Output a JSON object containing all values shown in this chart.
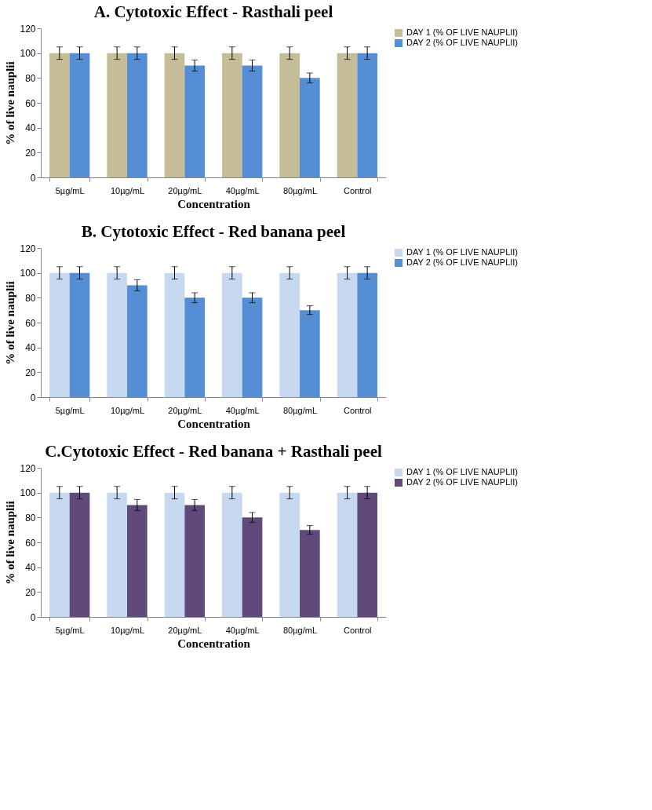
{
  "chart_data": [
    {
      "type": "bar",
      "title": "A. Cytotoxic Effect -  Rasthali peel",
      "xlabel": "Concentration",
      "ylabel": "% of live nauplii",
      "categories": [
        "5µg/mL",
        "10µg/mL",
        "20µg/mL",
        "40µg/mL",
        "80µg/mL",
        "Control"
      ],
      "ylim": [
        0,
        120
      ],
      "yticks": [
        0,
        20,
        40,
        60,
        80,
        100,
        120
      ],
      "grid": false,
      "legend": "right",
      "series": [
        {
          "name": "DAY 1 (% OF LIVE NAUPLII)",
          "color": "#c4bd97",
          "values": [
            100,
            100,
            100,
            100,
            100,
            100
          ],
          "errors": [
            5,
            5,
            5,
            5,
            5,
            5
          ]
        },
        {
          "name": "DAY 2 (% OF LIVE NAUPLII)",
          "color": "#558ed5",
          "values": [
            100,
            100,
            90,
            90,
            80,
            100
          ],
          "errors": [
            5,
            5,
            4.5,
            4.5,
            4,
            5
          ]
        }
      ]
    },
    {
      "type": "bar",
      "title": "B. Cytotoxic Effect -  Red banana peel",
      "xlabel": "Concentration",
      "ylabel": "% of live nauplii",
      "categories": [
        "5µg/mL",
        "10µg/mL",
        "20µg/mL",
        "40µg/mL",
        "80µg/mL",
        "Control"
      ],
      "ylim": [
        0,
        120
      ],
      "yticks": [
        0,
        20,
        40,
        60,
        80,
        100,
        120
      ],
      "grid": false,
      "legend": "right",
      "series": [
        {
          "name": "DAY 1 (% OF LIVE NAUPLII)",
          "color": "#c6d9f1",
          "values": [
            100,
            100,
            100,
            100,
            100,
            100
          ],
          "errors": [
            5,
            5,
            5,
            5,
            5,
            5
          ]
        },
        {
          "name": "DAY 2 (% OF LIVE NAUPLII)",
          "color": "#558ed5",
          "values": [
            100,
            90,
            80,
            80,
            70,
            100
          ],
          "errors": [
            5,
            4.5,
            4,
            4,
            3.5,
            5
          ]
        }
      ]
    },
    {
      "type": "bar",
      "title": "C.Cytotoxic Effect -  Red banana + Rasthali peel",
      "xlabel": "Concentration",
      "ylabel": "% of live nauplii",
      "categories": [
        "5µg/mL",
        "10µg/mL",
        "20µg/mL",
        "40µg/mL",
        "80µg/mL",
        "Control"
      ],
      "ylim": [
        0,
        120
      ],
      "yticks": [
        0,
        20,
        40,
        60,
        80,
        100,
        120
      ],
      "grid": false,
      "legend": "right",
      "series": [
        {
          "name": "DAY 1 (% OF LIVE NAUPLII)",
          "color": "#c6d9f1",
          "values": [
            100,
            100,
            100,
            100,
            100,
            100
          ],
          "errors": [
            5,
            5,
            5,
            5,
            5,
            5
          ]
        },
        {
          "name": "DAY 2 (% OF LIVE NAUPLII)",
          "color": "#604a7b",
          "values": [
            100,
            90,
            90,
            80,
            70,
            100
          ],
          "errors": [
            5,
            4.5,
            4.5,
            4,
            3.5,
            5
          ]
        }
      ]
    }
  ]
}
